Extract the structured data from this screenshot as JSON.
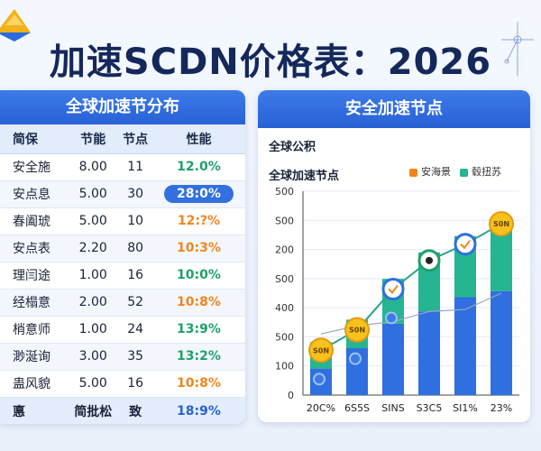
{
  "page": {
    "title": "加速SCDN价格表：2026"
  },
  "table": {
    "header": "全球加速节分布",
    "columns": [
      "简保",
      "节能",
      "节点",
      "性能"
    ],
    "rows": [
      {
        "name": "安全施",
        "energy": "8.00",
        "nodes": "11",
        "perf": "12.0%",
        "color": "#1fa06a"
      },
      {
        "name": "安点息",
        "energy": "5.00",
        "nodes": "30",
        "perf": "28:0%",
        "color": "#ffffff",
        "highlight": true
      },
      {
        "name": "春阖琥",
        "energy": "5.00",
        "nodes": "10",
        "perf": "12:?%",
        "color": "#f0851d"
      },
      {
        "name": "安点表",
        "energy": "2.20",
        "nodes": "80",
        "perf": "10:3%",
        "color": "#f0851d"
      },
      {
        "name": "理闫途",
        "energy": "1.00",
        "nodes": "16",
        "perf": "10:0%",
        "color": "#1fa06a"
      },
      {
        "name": "经榻意",
        "energy": "2.00",
        "nodes": "52",
        "perf": "10:8%",
        "color": "#f0851d"
      },
      {
        "name": "梢意师",
        "energy": "1.00",
        "nodes": "24",
        "perf": "13:9%",
        "color": "#1fa06a"
      },
      {
        "name": "渺涎询",
        "energy": "3.00",
        "nodes": "35",
        "perf": "13:2%",
        "color": "#1fa06a"
      },
      {
        "name": "蛊风貌",
        "energy": "5.00",
        "nodes": "16",
        "perf": "10:8%",
        "color": "#f0851d"
      }
    ],
    "footer": {
      "name": "悳",
      "energy": "简批松",
      "nodes": "致",
      "perf": "18:9%",
      "color": "#2563d6"
    }
  },
  "panel": {
    "header": "安全加速节点",
    "subheader": "全球公积",
    "chart_title": "全球加速节点"
  },
  "chart_data": {
    "type": "bar",
    "title": "全球加速节点",
    "categories": [
      "20C%",
      "6S5S",
      "SINS",
      "S3C5",
      "SI1%",
      "23%"
    ],
    "ylim": [
      0,
      500
    ],
    "yticks": [
      "0",
      "100",
      "500",
      "400",
      "S00",
      "200",
      "S00",
      "500"
    ],
    "series": [
      {
        "name": "安海景",
        "color": "#2f6fe0",
        "values": [
          65,
          115,
          175,
          205,
          240,
          255
        ]
      },
      {
        "name": "毂扭苏",
        "color": "#25b590",
        "values": [
          65,
          70,
          110,
          145,
          150,
          155
        ]
      }
    ],
    "line": {
      "color": "#27a38a",
      "values": [
        110,
        160,
        260,
        330,
        370,
        420
      ]
    },
    "line2": {
      "color": "#9aa6c2",
      "values": [
        150,
        170,
        180,
        205,
        210,
        250
      ]
    },
    "markers": [
      {
        "label": "S0N",
        "type": "coin"
      },
      {
        "label": "S0N",
        "type": "coin"
      },
      {
        "label": "",
        "type": "check"
      },
      {
        "label": "",
        "type": "badge"
      },
      {
        "label": "",
        "type": "check"
      },
      {
        "label": "S0N",
        "type": "coin"
      }
    ],
    "grid": true,
    "legend": "top-right"
  }
}
